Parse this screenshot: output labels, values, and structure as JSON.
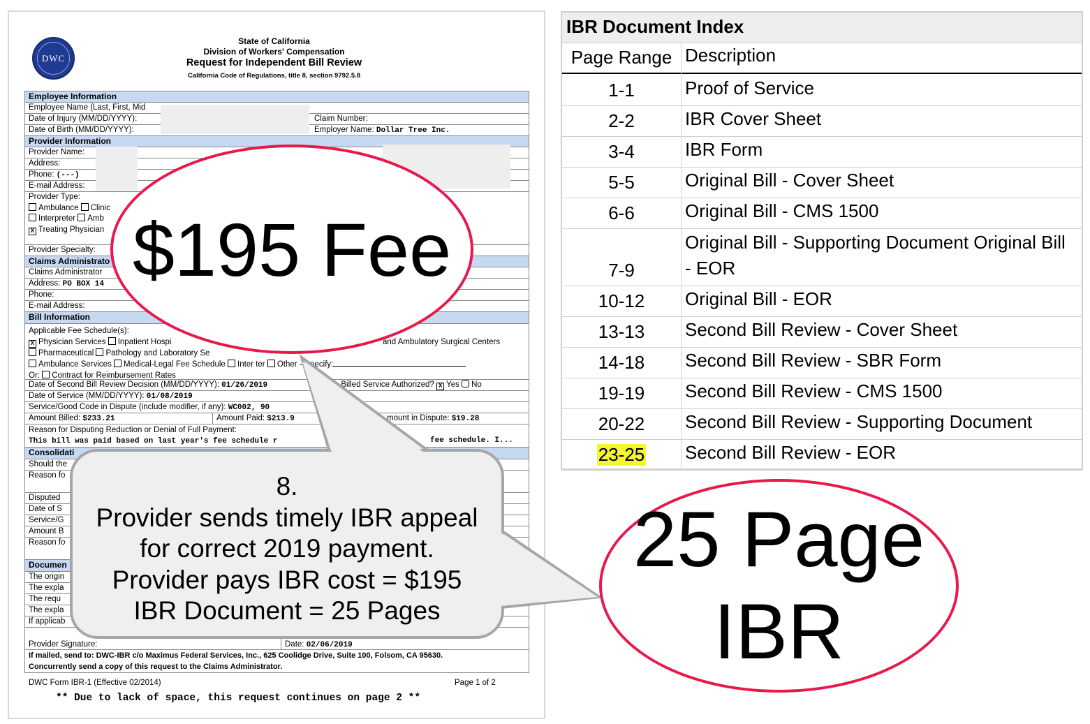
{
  "form": {
    "logo_text": "DWC",
    "header": [
      "State of California",
      "Division of Workers' Compensation",
      "Request for Independent Bill Review",
      "California Code of Regulations, title 8, section 9792.5.8"
    ],
    "employee": {
      "title": "Employee Information",
      "name": "Employee Name (Last, First, Mid",
      "doi": "Date of Injury (MM/DD/YYYY):",
      "claim": "Claim Number:",
      "dob": "Date of Birth (MM/DD/YYYY):",
      "employer_label": "Employer Name:",
      "employer": "Dollar Tree Inc."
    },
    "provider": {
      "title": "Provider Information",
      "name": "Provider Name:",
      "address": "Address:",
      "phone": "Phone:",
      "phone_val": "(---)",
      "email": "E-mail Address:",
      "type": "Provider Type:",
      "types": [
        "Ambulance",
        "Clinic",
        "Interpreter",
        "Amb",
        "Treating Physician"
      ],
      "specialty": "Provider Specialty:"
    },
    "claims": {
      "title": "Claims Administrato",
      "name": "Claims Administrator",
      "address": "Address:",
      "address_val": "PO BOX 14",
      "phone": "Phone:",
      "email": "E-mail Address:"
    },
    "bill": {
      "title": "Bill Information",
      "fee": "Applicable Fee Schedule(s):",
      "physician": "Physician Services",
      "inpatient": "Inpatient Hospi",
      "asc": "and Ambulatory Surgical Centers",
      "pharma": "Pharmaceutical",
      "patho": "Pathology and Laboratory Se",
      "ambulance": "Ambulance Services",
      "medlegal": "Medical-Legal Fee Schedule",
      "interp": "Inter  ter",
      "other": "Other – specify:",
      "or": "Or:",
      "contract": "Contract for Reimbursement Rates",
      "sbr_label": "Date of Second Bill Review Decision (MM/DD/YYYY):",
      "sbr": "01/26/2019",
      "auth": "as Billed Service Authorized?",
      "yes": "Yes",
      "no": "No",
      "dos_label": "Date of Service (MM/DD/YYYY):",
      "dos": "01/08/2019",
      "code_label": "Service/Good Code in Dispute (include modifier, if any):",
      "code": "WC002, 90",
      "billed_label": "Amount Billed:",
      "billed": "$233.21",
      "paid_label": "Amount Paid:",
      "paid": "$213.9",
      "dispute_label": "mount in Dispute:",
      "dispute": "$19.28",
      "reason_label": "Reason for Disputing Reduction or Denial of Full Payment:",
      "reason": "This bill was paid based on last year's fee schedule r",
      "reason_end": "fee schedule. I..."
    },
    "consol": {
      "title": "Consolidati",
      "rows": [
        "Should the",
        "Reason fo",
        "Disputed",
        "Date of S",
        "Service/G",
        "Amount B",
        "Reason fo"
      ]
    },
    "docs": {
      "title": "Documen",
      "rows": [
        "The origin",
        "The expla",
        "The requ",
        "The expla",
        "If applicab"
      ]
    },
    "signature": "Provider Signature:",
    "date_label": "Date:",
    "date": "02/06/2019",
    "mail": "If mailed, send to: DWC-IBR c/o Maximus Federal Services, Inc., 625 Coolidge Drive, Suite 100, Folsom, CA 95630.",
    "concurrent": "Concurrently send a copy of this request to the Claims Administrator.",
    "form_id": "DWC Form IBR-1 (Effective 02/2014)",
    "page": "Page 1 of 2",
    "continued": "** Due to lack of space, this request continues on page 2 **"
  },
  "overlays": {
    "fee": "$195 Fee",
    "callout": [
      "8.",
      "Provider sends timely IBR appeal",
      "for correct 2019 payment.",
      "Provider pays IBR cost = $195",
      "IBR Document = 25 Pages"
    ],
    "pages": [
      "25 Page",
      "IBR"
    ],
    "accent": "#e8194a",
    "highlight": "#f5f531"
  },
  "index": {
    "title": "IBR Document Index",
    "col1": "Page Range",
    "col2": "Description",
    "rows": [
      [
        "1-1",
        "Proof of Service"
      ],
      [
        "2-2",
        "IBR Cover Sheet"
      ],
      [
        "3-4",
        "IBR Form"
      ],
      [
        "5-5",
        "Original Bill - Cover Sheet"
      ],
      [
        "6-6",
        "Original Bill - CMS 1500"
      ],
      [
        "7-9",
        "Original Bill - Supporting Document Original Bill - EOR"
      ],
      [
        "10-12",
        "Original Bill - EOR"
      ],
      [
        "13-13",
        "Second Bill Review - Cover Sheet"
      ],
      [
        "14-18",
        "Second Bill Review - SBR Form"
      ],
      [
        "19-19",
        "Second Bill Review - CMS 1500"
      ],
      [
        "20-22",
        "Second Bill Review - Supporting Document"
      ],
      [
        "23-25",
        "Second Bill Review - EOR"
      ]
    ]
  }
}
